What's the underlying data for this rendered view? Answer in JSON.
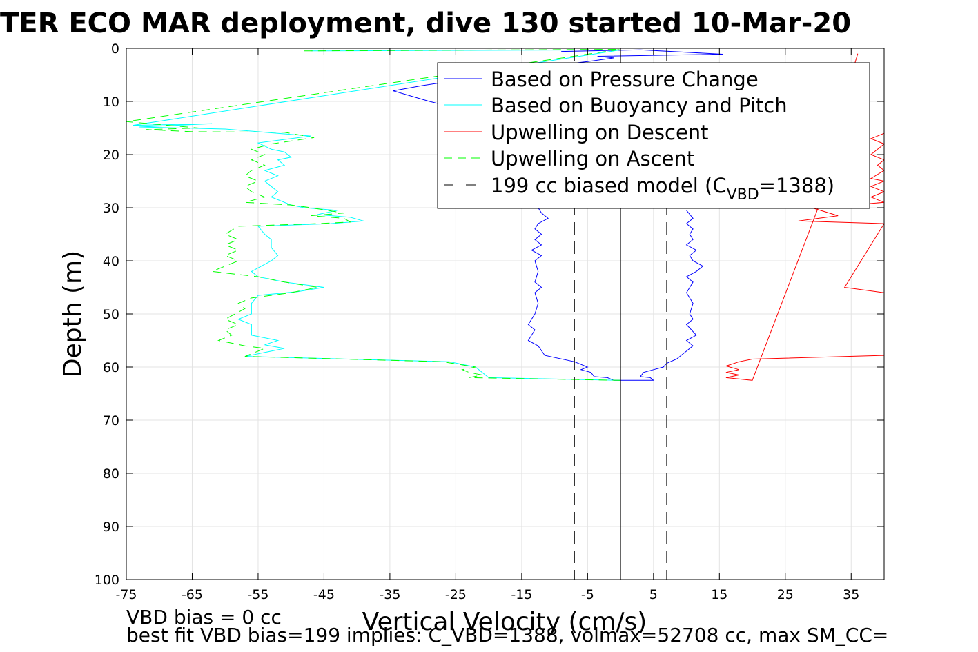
{
  "chart_data": {
    "type": "line",
    "title": "TER ECO MAR deployment, dive 130 started 10-Mar-20",
    "xlabel": "Vertical Velocity (cm/s)",
    "ylabel": "Depth (m)",
    "xlim": [
      -75,
      40
    ],
    "ylim": [
      0,
      100
    ],
    "y_reversed": true,
    "grid": true,
    "x_ticks": [
      "-75",
      "-65",
      "-55",
      "-45",
      "-35",
      "-25",
      "-15",
      "-5",
      "5",
      "15",
      "25",
      "35"
    ],
    "y_ticks": [
      "0",
      "10",
      "20",
      "30",
      "40",
      "50",
      "60",
      "70",
      "80",
      "90",
      "100"
    ],
    "legend": {
      "placement": "top-right",
      "entries": [
        "Based on Pressure Change",
        "Based on Buoyancy and Pitch",
        "Upwelling on Descent",
        "Upwelling on Ascent"
      ],
      "model_prefix": "199 cc biased model (C",
      "model_sub": "VBD",
      "model_suffix": "=1388)"
    },
    "series": [
      {
        "color": "#0000ff",
        "dash": "solid",
        "points": [
          [
            -9,
            0.6
          ],
          [
            3,
            0.3
          ],
          [
            15.5,
            1.1
          ],
          [
            -3.5,
            1.5
          ],
          [
            -1,
            1.8
          ],
          [
            -5,
            2.5
          ],
          [
            -12,
            3.5
          ],
          [
            -22,
            5.5
          ],
          [
            -30,
            7
          ],
          [
            -34.5,
            8
          ],
          [
            -29,
            10
          ],
          [
            -24,
            11.5
          ],
          [
            -22,
            12.2
          ],
          [
            -16,
            13
          ],
          [
            -12,
            14
          ],
          [
            -10,
            16
          ],
          [
            -11,
            18
          ],
          [
            -10.5,
            20
          ],
          [
            -11,
            22
          ],
          [
            -10.5,
            24
          ],
          [
            -11.5,
            26
          ],
          [
            -11,
            28
          ],
          [
            -12.5,
            30
          ],
          [
            -12,
            31
          ],
          [
            -11,
            32
          ],
          [
            -12.5,
            33
          ],
          [
            -13,
            34
          ],
          [
            -12,
            35
          ],
          [
            -13,
            36
          ],
          [
            -12,
            37
          ],
          [
            -13.5,
            38
          ],
          [
            -12,
            39
          ],
          [
            -13,
            40
          ],
          [
            -12.5,
            42
          ],
          [
            -13,
            44
          ],
          [
            -12,
            45
          ],
          [
            -13,
            46
          ],
          [
            -12.5,
            48
          ],
          [
            -13,
            50
          ],
          [
            -14,
            52
          ],
          [
            -13,
            53
          ],
          [
            -14,
            55
          ],
          [
            -12.5,
            56
          ],
          [
            -11.5,
            57.8
          ],
          [
            -7,
            59
          ],
          [
            -5,
            60
          ],
          [
            -6,
            60.5
          ],
          [
            -4.5,
            61
          ],
          [
            -4,
            61.8
          ],
          [
            -2,
            62
          ],
          [
            -1,
            62.5
          ],
          [
            5,
            62.5
          ],
          [
            4.5,
            62
          ],
          [
            3,
            61.8
          ],
          [
            3.5,
            61
          ],
          [
            5,
            60.5
          ],
          [
            6.5,
            60
          ],
          [
            7,
            59.3
          ],
          [
            8.5,
            58.5
          ],
          [
            10,
            57
          ],
          [
            11,
            56
          ],
          [
            10,
            55
          ],
          [
            11.5,
            54
          ],
          [
            10,
            52
          ],
          [
            11,
            51
          ],
          [
            10.5,
            50
          ],
          [
            11,
            48
          ],
          [
            10,
            46
          ],
          [
            11,
            44
          ],
          [
            10,
            43
          ],
          [
            11.5,
            42
          ],
          [
            12.5,
            41
          ],
          [
            11,
            40
          ],
          [
            10.5,
            39
          ],
          [
            11.5,
            38
          ],
          [
            10,
            37
          ],
          [
            11,
            36
          ],
          [
            10.5,
            35
          ],
          [
            11,
            34
          ],
          [
            10,
            33
          ],
          [
            11,
            32
          ],
          [
            10,
            30.5
          ]
        ]
      },
      {
        "color": "#00ffff",
        "dash": "solid",
        "points": [
          [
            -47,
            0.5
          ],
          [
            0,
            0.3
          ],
          [
            -74,
            14.5
          ],
          [
            -62,
            14.2
          ],
          [
            -73,
            14.8
          ],
          [
            -60,
            15.2
          ],
          [
            -47,
            16.5
          ],
          [
            -55,
            17.8
          ],
          [
            -53,
            19
          ],
          [
            -51,
            19.5
          ],
          [
            -50,
            20.5
          ],
          [
            -52,
            21
          ],
          [
            -51,
            22
          ],
          [
            -54,
            23
          ],
          [
            -52,
            24
          ],
          [
            -54,
            25
          ],
          [
            -53,
            26
          ],
          [
            -52,
            27
          ],
          [
            -53,
            28
          ],
          [
            -50,
            29.5
          ],
          [
            -48,
            30
          ],
          [
            -43,
            30.5
          ],
          [
            -46,
            31.3
          ],
          [
            -41,
            31.8
          ],
          [
            -39,
            32.5
          ],
          [
            -44,
            33
          ],
          [
            -55,
            33.5
          ],
          [
            -54,
            35
          ],
          [
            -53,
            36
          ],
          [
            -53,
            37.5
          ],
          [
            -52,
            39
          ],
          [
            -53,
            40
          ],
          [
            -56,
            42
          ],
          [
            -55,
            43
          ],
          [
            -51,
            44
          ],
          [
            -45,
            45
          ],
          [
            -49,
            45.8
          ],
          [
            -55,
            46.5
          ],
          [
            -56,
            48
          ],
          [
            -56,
            50
          ],
          [
            -58,
            51
          ],
          [
            -56,
            52
          ],
          [
            -56,
            54
          ],
          [
            -52,
            55
          ],
          [
            -54,
            55.8
          ],
          [
            -51,
            56.5
          ],
          [
            -57,
            58
          ],
          [
            -26,
            59
          ],
          [
            -22,
            60
          ],
          [
            -21,
            61
          ],
          [
            -20,
            62
          ],
          [
            0,
            62.5
          ]
        ]
      },
      {
        "color": "#00ff00",
        "dash": "dashed",
        "points": [
          [
            -48,
            0.5
          ],
          [
            0,
            0.2
          ],
          [
            -75,
            13.8
          ],
          [
            -64,
            15
          ],
          [
            -72,
            15.3
          ],
          [
            -65,
            15.7
          ],
          [
            -51,
            15.8
          ],
          [
            -46.5,
            16.8
          ],
          [
            -53,
            18
          ],
          [
            -56,
            19
          ],
          [
            -54,
            20
          ],
          [
            -56,
            21
          ],
          [
            -54,
            22
          ],
          [
            -56,
            23
          ],
          [
            -57,
            24
          ],
          [
            -55,
            25
          ],
          [
            -57,
            26
          ],
          [
            -56,
            27
          ],
          [
            -54,
            28
          ],
          [
            -57,
            29
          ],
          [
            -50,
            29.5
          ],
          [
            -47,
            30
          ],
          [
            -42,
            31
          ],
          [
            -47,
            31.5
          ],
          [
            -42,
            32
          ],
          [
            -41,
            32.7
          ],
          [
            -46,
            33
          ],
          [
            -58,
            33.5
          ],
          [
            -60,
            35
          ],
          [
            -58,
            36
          ],
          [
            -60,
            37
          ],
          [
            -58,
            38
          ],
          [
            -60,
            39
          ],
          [
            -58,
            40
          ],
          [
            -60,
            41
          ],
          [
            -62,
            42
          ],
          [
            -55,
            43
          ],
          [
            -51,
            44
          ],
          [
            -46,
            45
          ],
          [
            -50,
            46
          ],
          [
            -56,
            47
          ],
          [
            -58,
            48
          ],
          [
            -57,
            49
          ],
          [
            -60,
            51
          ],
          [
            -58,
            52
          ],
          [
            -60,
            53
          ],
          [
            -59,
            54
          ],
          [
            -61,
            55
          ],
          [
            -57,
            56
          ],
          [
            -54,
            56.5
          ],
          [
            -57,
            58
          ],
          [
            -27,
            59
          ],
          [
            -22,
            60
          ],
          [
            -24,
            60.5
          ],
          [
            -23,
            61
          ],
          [
            -21,
            61.5
          ],
          [
            -23,
            62
          ],
          [
            0,
            62.5
          ]
        ]
      },
      {
        "color": "#ff0000",
        "dash": "solid",
        "points": [
          [
            36,
            1
          ],
          [
            29,
            30
          ],
          [
            33,
            31.5
          ],
          [
            27,
            32.5
          ],
          [
            40,
            33
          ],
          [
            34,
            45
          ],
          [
            40,
            46
          ],
          [
            40,
            57.8
          ],
          [
            20,
            58.5
          ],
          [
            18,
            59
          ],
          [
            16,
            59.8
          ],
          [
            18,
            60.5
          ],
          [
            16,
            61
          ],
          [
            18,
            61.5
          ],
          [
            16,
            62
          ],
          [
            20,
            62.5
          ],
          [
            30,
            30
          ],
          [
            40,
            29
          ],
          [
            38,
            28
          ],
          [
            40,
            27
          ],
          [
            38,
            26
          ],
          [
            40,
            25
          ],
          [
            38,
            24.5
          ],
          [
            40,
            23
          ],
          [
            39,
            22
          ],
          [
            40,
            21
          ],
          [
            38,
            20
          ],
          [
            40,
            18
          ],
          [
            38,
            17
          ],
          [
            40,
            16
          ]
        ]
      },
      {
        "color": "#000000",
        "dash": "solid",
        "points": [
          [
            0,
            0
          ],
          [
            0,
            100
          ]
        ]
      },
      {
        "color": "#000000",
        "dash": "dashed",
        "points": [
          [
            -7,
            0
          ],
          [
            -7,
            100
          ]
        ]
      },
      {
        "color": "#000000",
        "dash": "dashed",
        "points": [
          [
            7,
            0
          ],
          [
            7,
            100
          ]
        ]
      }
    ],
    "annotations": [
      "VBD bias = 0 cc",
      "best fit VBD bias=199 implies: C_VBD=1388, volmax=52708 cc, max SM_CC="
    ]
  }
}
